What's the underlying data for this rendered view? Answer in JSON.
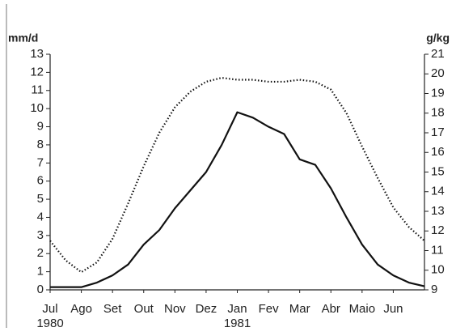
{
  "chart_data": {
    "type": "line",
    "ylabel": "mm/d",
    "y2label": "g/kg",
    "xlim": [
      0,
      12
    ],
    "xticks": [
      {
        "value": 0,
        "label": "Jul"
      },
      {
        "value": 1,
        "label": "Ago"
      },
      {
        "value": 2,
        "label": "Set"
      },
      {
        "value": 3,
        "label": "Out"
      },
      {
        "value": 4,
        "label": "Nov"
      },
      {
        "value": 5,
        "label": "Dez"
      },
      {
        "value": 6,
        "label": "Jan"
      },
      {
        "value": 7,
        "label": "Fev"
      },
      {
        "value": 8,
        "label": "Mar"
      },
      {
        "value": 9,
        "label": "Abr"
      },
      {
        "value": 10,
        "label": "Maio"
      },
      {
        "value": 11,
        "label": "Jun"
      }
    ],
    "year_labels": [
      {
        "value": 0,
        "label": "1980"
      },
      {
        "value": 6,
        "label": "1981"
      }
    ],
    "ylim": [
      0,
      13
    ],
    "yticks": [
      0,
      1,
      2,
      3,
      4,
      5,
      6,
      7,
      8,
      9,
      10,
      11,
      12,
      13
    ],
    "y2lim": [
      9,
      21
    ],
    "y2ticks": [
      9,
      10,
      11,
      12,
      13,
      14,
      15,
      16,
      17,
      18,
      19,
      20,
      21
    ],
    "x": [
      0,
      0.5,
      1,
      1.5,
      2,
      2.5,
      3,
      3.5,
      4,
      4.5,
      5,
      5.5,
      6,
      6.5,
      7,
      7.5,
      8,
      8.5,
      9,
      9.5,
      10,
      10.5,
      11,
      11.5,
      12
    ],
    "series": [
      {
        "color": "#111111",
        "style": "solid",
        "axis": "y",
        "values": [
          0.15,
          0.15,
          0.15,
          0.4,
          0.8,
          1.4,
          2.5,
          3.3,
          4.5,
          5.5,
          6.5,
          8.0,
          9.8,
          9.5,
          9.0,
          8.6,
          7.2,
          6.9,
          5.6,
          4.0,
          2.5,
          1.4,
          0.8,
          0.4,
          0.2
        ]
      },
      {
        "color": "#111111",
        "style": "dotted",
        "axis": "y2",
        "values": [
          11.5,
          10.5,
          9.9,
          10.4,
          11.6,
          13.4,
          15.3,
          17.0,
          18.3,
          19.1,
          19.6,
          19.8,
          19.7,
          19.7,
          19.6,
          19.6,
          19.7,
          19.6,
          19.2,
          18.0,
          16.3,
          14.7,
          13.2,
          12.2,
          11.5
        ]
      }
    ]
  }
}
